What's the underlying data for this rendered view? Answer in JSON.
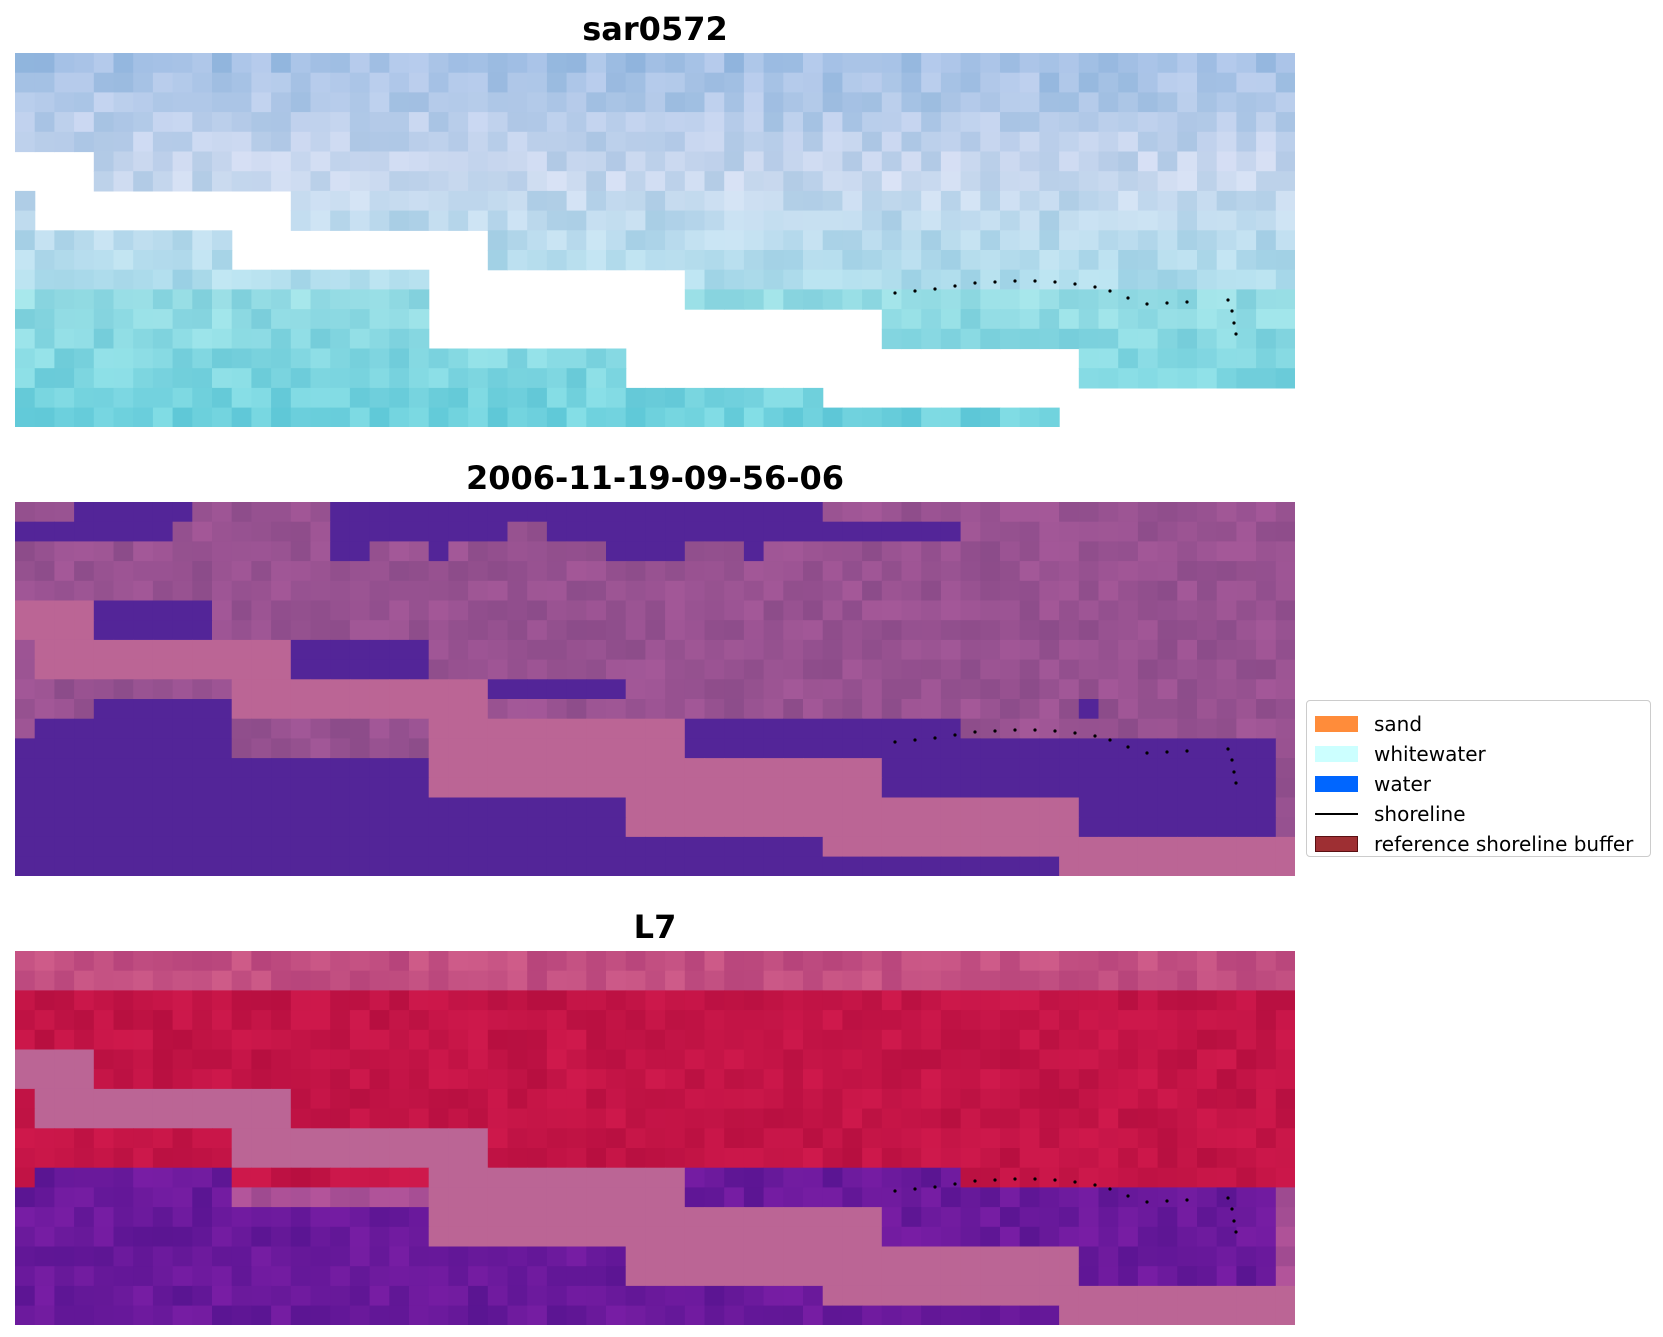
{
  "panels": [
    {
      "title": "sar0572",
      "scheme": "sar"
    },
    {
      "title": "2006-11-19-09-56-06",
      "scheme": "class"
    },
    {
      "title": "L7",
      "scheme": "l7"
    }
  ],
  "legend": {
    "items": [
      {
        "label": "sand",
        "kind": "patch",
        "color": "#ff8c3a"
      },
      {
        "label": "whitewater",
        "kind": "patch",
        "color": "#ccffff"
      },
      {
        "label": "water",
        "kind": "patch",
        "color": "#0066ff"
      },
      {
        "label": "shoreline",
        "kind": "line",
        "color": "#000000"
      },
      {
        "label": "reference shoreline buffer",
        "kind": "patch",
        "color": "#9e2f33",
        "edge": "#5a1013"
      }
    ]
  },
  "colors": {
    "buffer_pink": "#bb6595",
    "water_purple": "#532598",
    "land_mauve": "#9a5590",
    "l7_red": "#c2134a",
    "l7_purple": "#6a1598"
  }
}
